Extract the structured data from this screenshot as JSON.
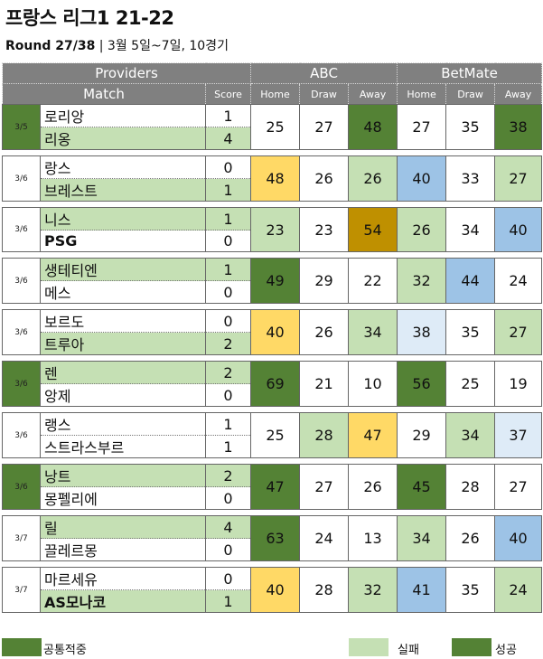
{
  "title": "프랑스 리그1 21-22",
  "subtitle": {
    "round": "Round 27/38",
    "rest": " | 3월 5일~7일, 10경기"
  },
  "headers": {
    "providers": "Providers",
    "abc": "ABC",
    "betmate": "BetMate",
    "match": "Match",
    "score": "Score",
    "home": "Home",
    "draw": "Draw",
    "away": "Away"
  },
  "colors": {
    "dark_green": "#548235",
    "light_green": "#c5e0b4",
    "yellow": "#ffd966",
    "gold": "#bf9000",
    "blue": "#9dc3e6",
    "pale_blue": "#deebf7",
    "header_gray": "#808080"
  },
  "matches": [
    {
      "date": "3/5",
      "home": "로리앙",
      "away": "리옹",
      "hs": "1",
      "as": "4",
      "abc": [
        "25",
        "27",
        "48"
      ],
      "bm": [
        "27",
        "35",
        "38"
      ],
      "date_c": "dark_green",
      "home_c": "",
      "away_c": "light_green",
      "hs_c": "",
      "as_c": "light_green",
      "abc_c": [
        "",
        "",
        "dark_green"
      ],
      "bm_c": [
        "",
        "",
        "dark_green"
      ]
    },
    {
      "date": "3/6",
      "home": "랑스",
      "away": "브레스트",
      "hs": "0",
      "as": "1",
      "abc": [
        "48",
        "26",
        "26"
      ],
      "bm": [
        "40",
        "33",
        "27"
      ],
      "date_c": "",
      "home_c": "",
      "away_c": "light_green",
      "hs_c": "",
      "as_c": "light_green",
      "abc_c": [
        "yellow",
        "",
        "light_green"
      ],
      "bm_c": [
        "blue",
        "",
        "light_green"
      ]
    },
    {
      "date": "3/6",
      "home": "니스",
      "away": "PSG",
      "hs": "1",
      "as": "0",
      "abc": [
        "23",
        "23",
        "54"
      ],
      "bm": [
        "26",
        "34",
        "40"
      ],
      "date_c": "",
      "home_c": "light_green",
      "away_c": "",
      "hs_c": "light_green",
      "as_c": "",
      "abc_c": [
        "light_green",
        "",
        "gold"
      ],
      "bm_c": [
        "light_green",
        "",
        "blue"
      ]
    },
    {
      "date": "3/6",
      "home": "생테티엔",
      "away": "메스",
      "hs": "1",
      "as": "0",
      "abc": [
        "49",
        "29",
        "22"
      ],
      "bm": [
        "32",
        "44",
        "24"
      ],
      "date_c": "",
      "home_c": "light_green",
      "away_c": "",
      "hs_c": "light_green",
      "as_c": "",
      "abc_c": [
        "dark_green",
        "",
        ""
      ],
      "bm_c": [
        "light_green",
        "blue",
        ""
      ]
    },
    {
      "date": "3/6",
      "home": "보르도",
      "away": "트루아",
      "hs": "0",
      "as": "2",
      "abc": [
        "40",
        "26",
        "34"
      ],
      "bm": [
        "38",
        "35",
        "27"
      ],
      "date_c": "",
      "home_c": "",
      "away_c": "light_green",
      "hs_c": "",
      "as_c": "light_green",
      "abc_c": [
        "yellow",
        "",
        "light_green"
      ],
      "bm_c": [
        "pale_blue",
        "",
        "light_green"
      ]
    },
    {
      "date": "3/6",
      "home": "렌",
      "away": "앙제",
      "hs": "2",
      "as": "0",
      "abc": [
        "69",
        "21",
        "10"
      ],
      "bm": [
        "56",
        "25",
        "19"
      ],
      "date_c": "dark_green",
      "home_c": "light_green",
      "away_c": "",
      "hs_c": "light_green",
      "as_c": "",
      "abc_c": [
        "dark_green",
        "",
        ""
      ],
      "bm_c": [
        "dark_green",
        "",
        ""
      ]
    },
    {
      "date": "3/6",
      "home": "랭스",
      "away": "스트라스부르",
      "hs": "1",
      "as": "1",
      "abc": [
        "25",
        "28",
        "47"
      ],
      "bm": [
        "29",
        "34",
        "37"
      ],
      "date_c": "",
      "home_c": "",
      "away_c": "",
      "hs_c": "",
      "as_c": "",
      "abc_c": [
        "",
        "light_green",
        "yellow"
      ],
      "bm_c": [
        "",
        "light_green",
        "pale_blue"
      ]
    },
    {
      "date": "3/6",
      "home": "낭트",
      "away": "몽펠리에",
      "hs": "2",
      "as": "0",
      "abc": [
        "47",
        "27",
        "26"
      ],
      "bm": [
        "45",
        "28",
        "27"
      ],
      "date_c": "dark_green",
      "home_c": "light_green",
      "away_c": "",
      "hs_c": "light_green",
      "as_c": "",
      "abc_c": [
        "dark_green",
        "",
        ""
      ],
      "bm_c": [
        "dark_green",
        "",
        ""
      ]
    },
    {
      "date": "3/7",
      "home": "릴",
      "away": "끌레르몽",
      "hs": "4",
      "as": "0",
      "abc": [
        "63",
        "24",
        "13"
      ],
      "bm": [
        "34",
        "26",
        "40"
      ],
      "date_c": "",
      "home_c": "light_green",
      "away_c": "",
      "hs_c": "light_green",
      "as_c": "",
      "abc_c": [
        "dark_green",
        "",
        ""
      ],
      "bm_c": [
        "light_green",
        "",
        "blue"
      ]
    },
    {
      "date": "3/7",
      "home": "마르세유",
      "away": "AS모나코",
      "hs": "0",
      "as": "1",
      "abc": [
        "40",
        "28",
        "32"
      ],
      "bm": [
        "41",
        "35",
        "24"
      ],
      "date_c": "",
      "home_c": "",
      "away_c": "light_green",
      "hs_c": "",
      "as_c": "light_green",
      "abc_c": [
        "yellow",
        "",
        "light_green"
      ],
      "bm_c": [
        "blue",
        "",
        "light_green"
      ]
    }
  ],
  "legend": {
    "all_hit": "공통적중",
    "fail": "실패",
    "success": "성공"
  }
}
